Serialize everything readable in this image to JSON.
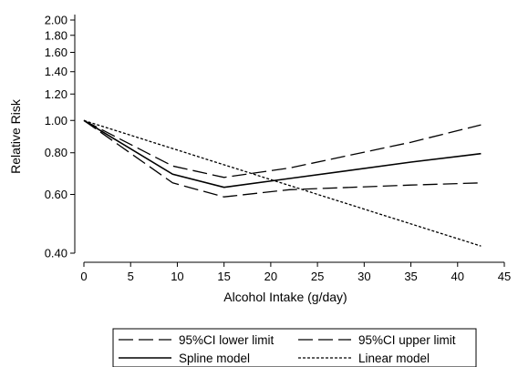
{
  "chart_data": {
    "type": "line",
    "xlabel": "Alcohol Intake (g/day)",
    "ylabel": "Relative Risk",
    "x_scale": "linear",
    "y_scale": "log",
    "xlim": [
      0,
      45
    ],
    "ylim": [
      0.4,
      2.0
    ],
    "x_ticks": [
      0,
      5,
      10,
      15,
      20,
      25,
      30,
      35,
      40,
      45
    ],
    "x_tick_labels": [
      "0",
      "5",
      "10",
      "15",
      "20",
      "25",
      "30",
      "35",
      "40",
      "45"
    ],
    "y_ticks": [
      0.4,
      0.6,
      0.8,
      1.0,
      1.2,
      1.4,
      1.6,
      1.8,
      2.0
    ],
    "y_tick_labels": [
      "0.40",
      "0.60",
      "0.80",
      "1.00",
      "1.20",
      "1.40",
      "1.60",
      "1.80",
      "2.00"
    ],
    "grid": false,
    "legend_position": "bottom",
    "series": [
      {
        "name": "95%CI lower limit",
        "dash": "long-dash",
        "x": [
          0,
          9.5,
          15,
          22,
          35,
          42.5
        ],
        "y": [
          1.0,
          0.65,
          0.59,
          0.62,
          0.64,
          0.65
        ]
      },
      {
        "name": "95%CI upper limit",
        "dash": "long-dash",
        "x": [
          0,
          9.5,
          15,
          22,
          35,
          42.5
        ],
        "y": [
          1.0,
          0.73,
          0.675,
          0.72,
          0.86,
          0.97
        ]
      },
      {
        "name": "Spline model",
        "dash": "solid",
        "x": [
          0,
          9.5,
          15,
          22,
          35,
          42.5
        ],
        "y": [
          1.0,
          0.69,
          0.63,
          0.67,
          0.75,
          0.795
        ]
      },
      {
        "name": "Linear model",
        "dash": "dotted",
        "x": [
          0,
          42.5
        ],
        "y": [
          1.0,
          0.42
        ]
      }
    ]
  }
}
